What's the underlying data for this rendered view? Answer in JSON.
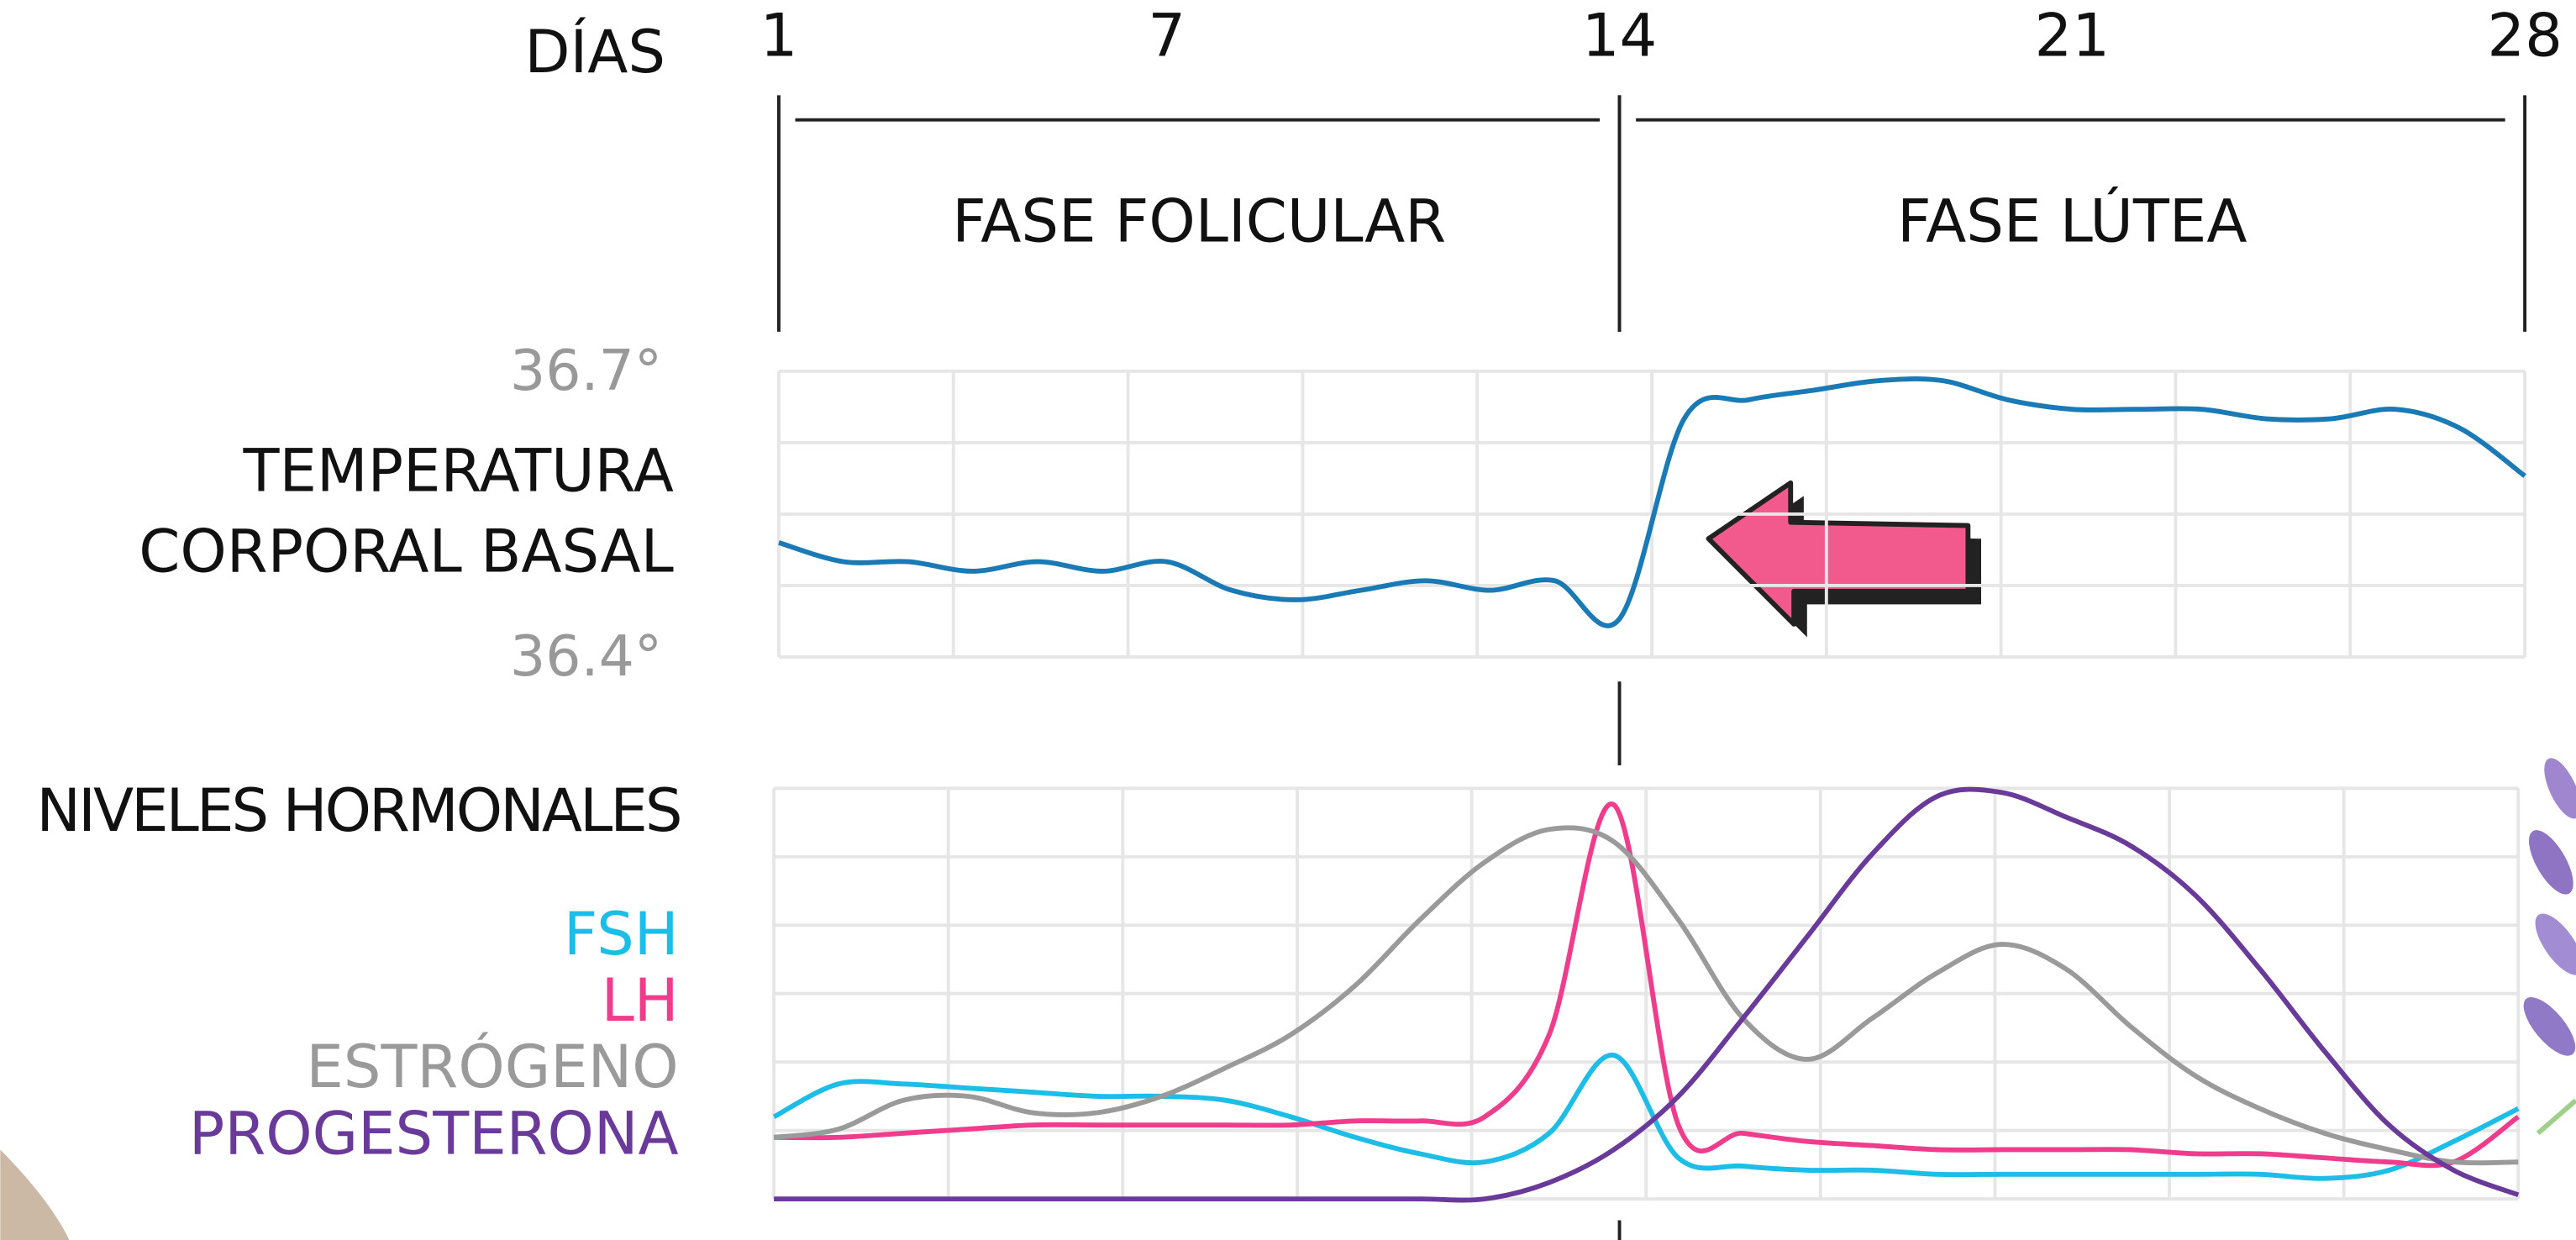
{
  "chart_data": [
    {
      "type": "line",
      "xlabel": "DÍAS",
      "ylabel": [
        "TEMPERATURA",
        "CORPORAL BASAL"
      ],
      "x": [
        1,
        2,
        3,
        4,
        5,
        6,
        7,
        8,
        9,
        10,
        11,
        12,
        13,
        14,
        15,
        16,
        17,
        18,
        19,
        20,
        21,
        22,
        23,
        24,
        25,
        26,
        27,
        28
      ],
      "xlim": [
        1,
        28
      ],
      "xticks": [
        1,
        7,
        14,
        21,
        28
      ],
      "ylim": [
        36.4,
        36.7
      ],
      "yticks": [
        {
          "value": 36.4,
          "label": "36.4°"
        },
        {
          "value": 36.7,
          "label": "36.7°"
        }
      ],
      "grid": true,
      "color": "#1a7ab5",
      "values": [
        36.52,
        36.5,
        36.5,
        36.49,
        36.5,
        36.49,
        36.5,
        36.47,
        36.46,
        36.47,
        36.48,
        36.47,
        36.48,
        36.44,
        36.65,
        36.67,
        36.68,
        36.69,
        36.69,
        36.67,
        36.66,
        36.66,
        36.66,
        36.65,
        36.65,
        36.66,
        36.64,
        36.59
      ],
      "phases": [
        {
          "label": "FASE FOLICULAR",
          "start": 1,
          "end": 14
        },
        {
          "label": "FASE LÚTEA",
          "start": 14,
          "end": 28
        }
      ]
    },
    {
      "type": "line",
      "title": "NIVELES HORMONALES",
      "x": [
        1,
        2,
        3,
        4,
        5,
        6,
        7,
        8,
        9,
        10,
        11,
        12,
        13,
        14,
        15,
        16,
        17,
        18,
        19,
        20,
        21,
        22,
        23,
        24,
        25,
        26,
        27,
        28
      ],
      "xlim": [
        1,
        28
      ],
      "ylim": [
        0,
        100
      ],
      "grid": true,
      "series": [
        {
          "name": "FSH",
          "color": "#1cbde6",
          "values": [
            20,
            28,
            28,
            27,
            26,
            25,
            25,
            24,
            20,
            15,
            11,
            9,
            16,
            35,
            10,
            8,
            7,
            7,
            6,
            6,
            6,
            6,
            6,
            6,
            5,
            7,
            14,
            22
          ]
        },
        {
          "name": "LH",
          "color": "#f03c8c",
          "values": [
            15,
            15,
            16,
            17,
            18,
            18,
            18,
            18,
            18,
            19,
            19,
            20,
            40,
            96,
            18,
            16,
            14,
            13,
            12,
            12,
            12,
            12,
            11,
            11,
            10,
            9,
            9,
            20
          ]
        },
        {
          "name": "ESTRÓGENO",
          "color": "#9a9a9a",
          "values": [
            15,
            17,
            24,
            25,
            21,
            21,
            25,
            32,
            40,
            52,
            68,
            82,
            90,
            87,
            68,
            44,
            34,
            44,
            55,
            62,
            56,
            42,
            30,
            22,
            16,
            12,
            9,
            9
          ]
        },
        {
          "name": "PROGESTERONA",
          "color": "#6a3a9a",
          "values": [
            0,
            0,
            0,
            0,
            0,
            0,
            0,
            0,
            0,
            0,
            0,
            0,
            4,
            12,
            25,
            44,
            64,
            84,
            98,
            99,
            93,
            86,
            74,
            56,
            36,
            18,
            7,
            1
          ]
        }
      ]
    }
  ]
}
